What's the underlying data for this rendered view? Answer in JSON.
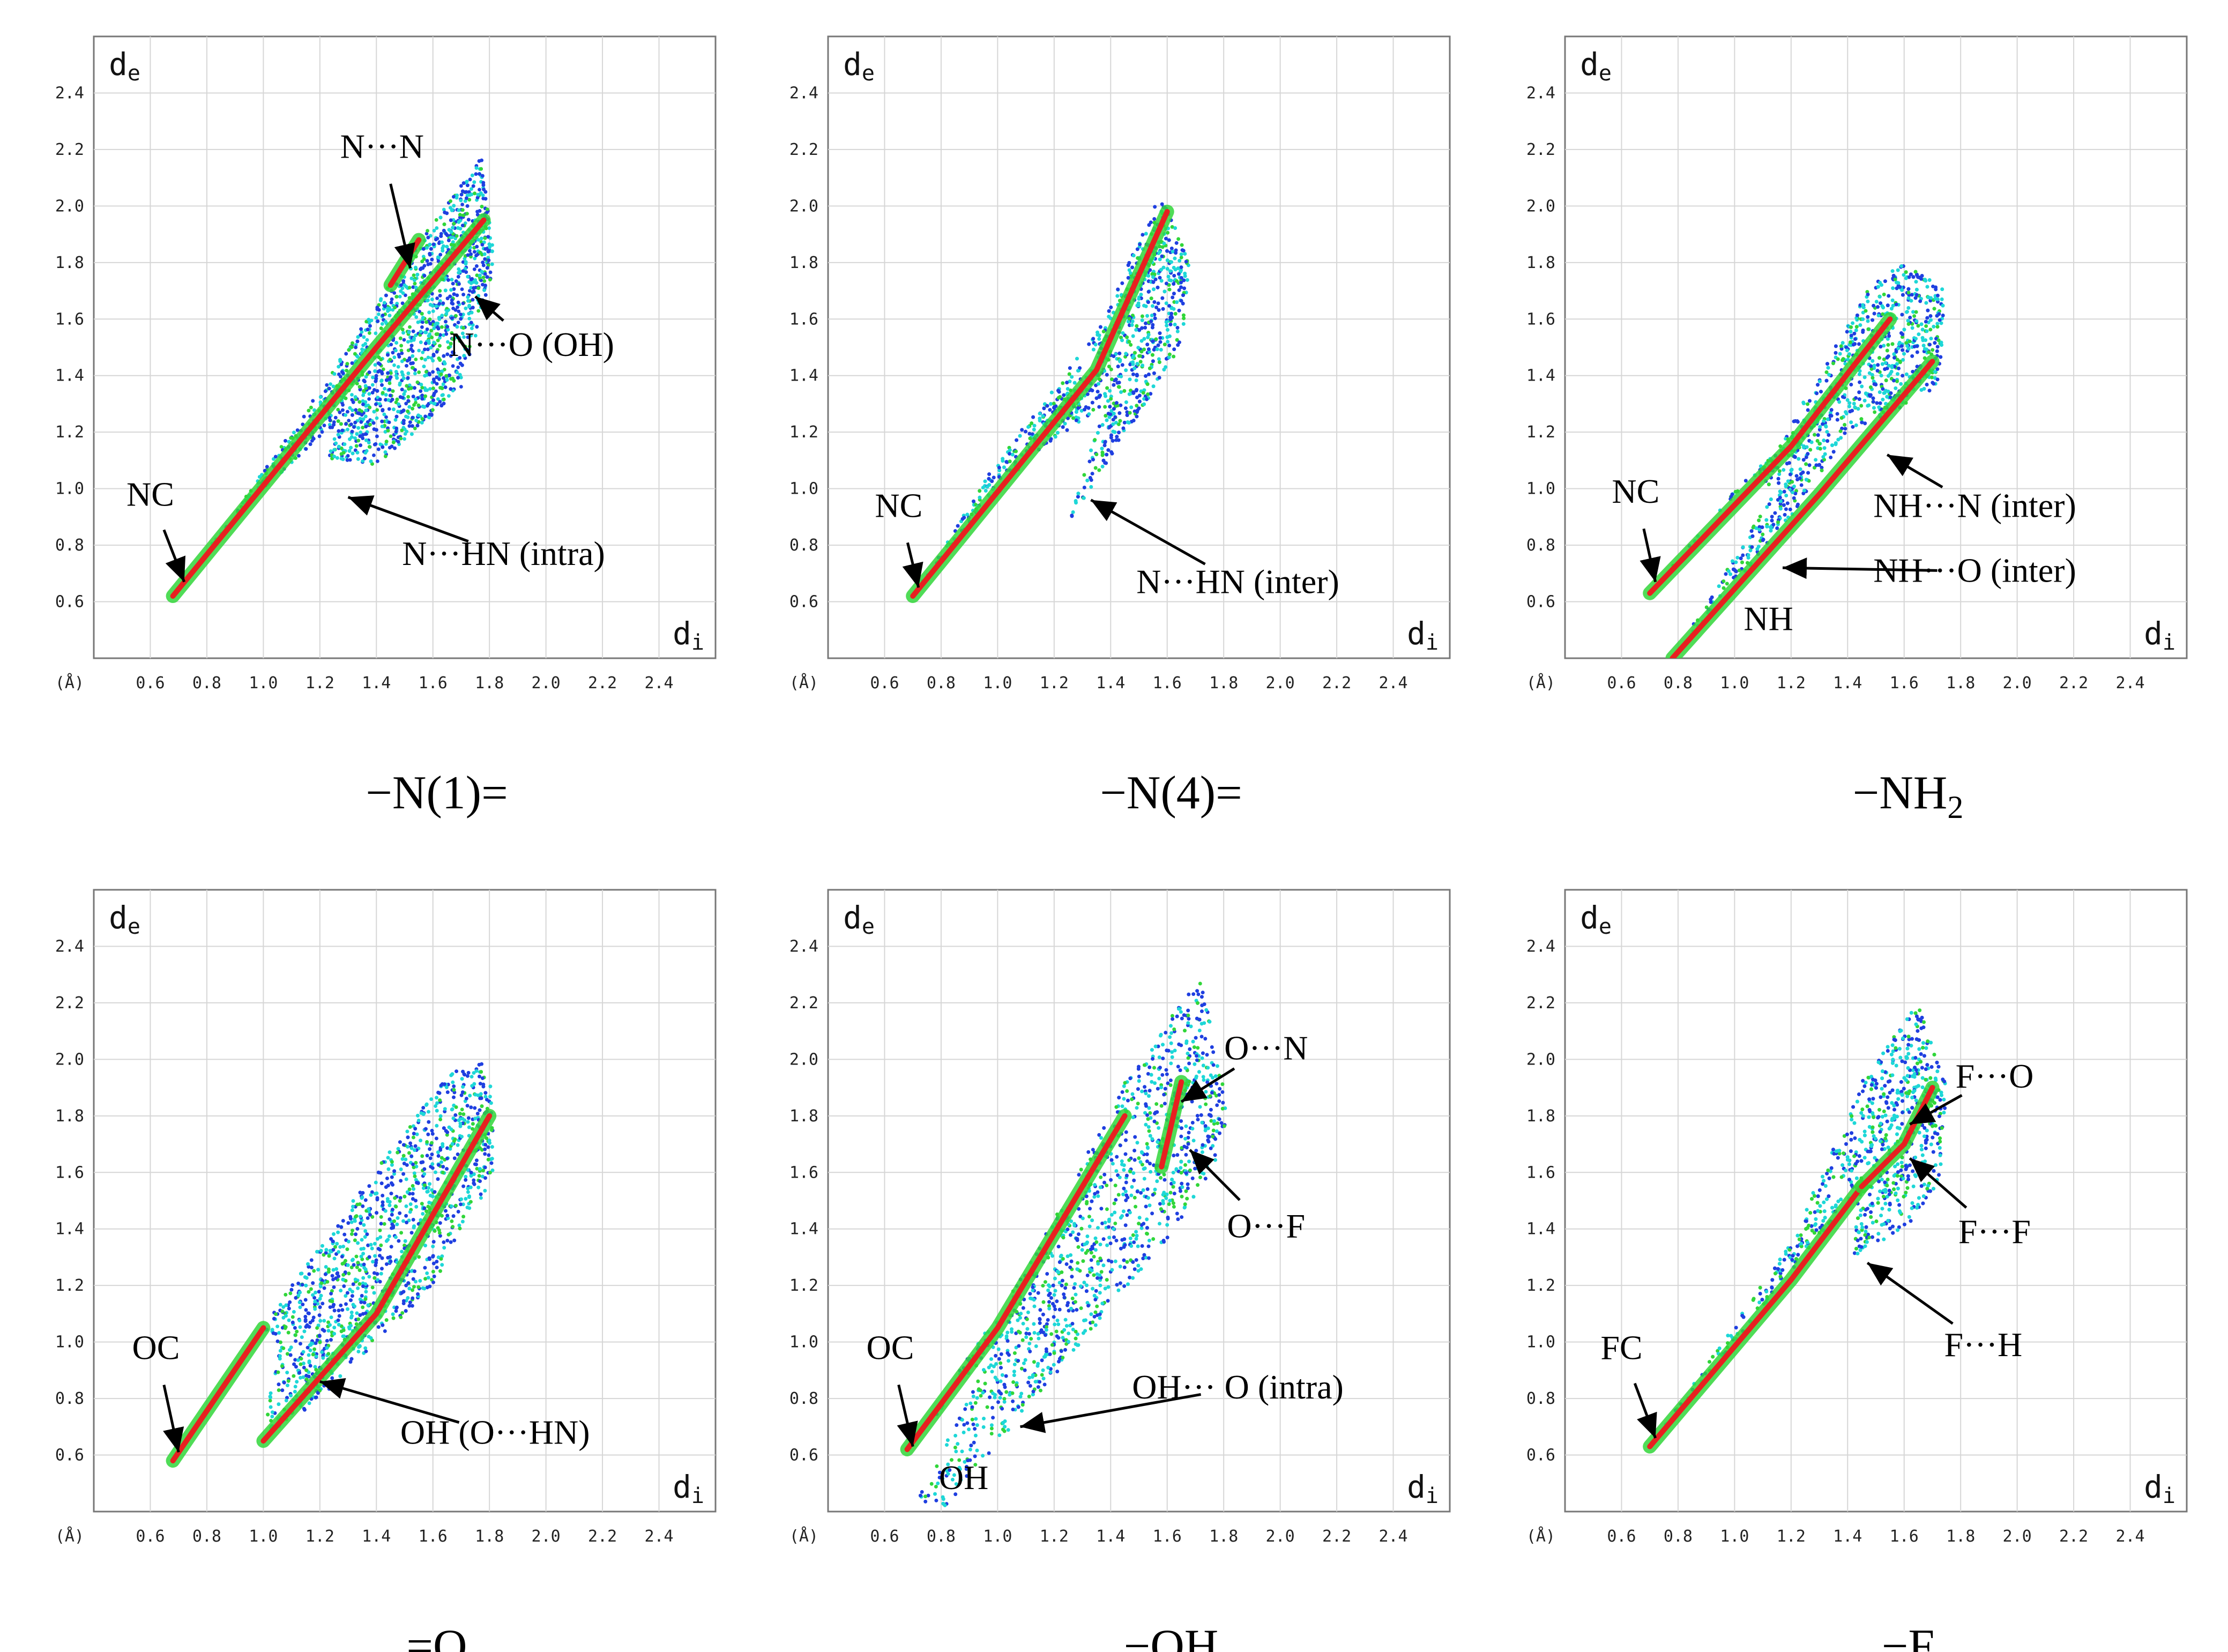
{
  "figure": {
    "axis_labels": {
      "de": "d",
      "de_sub": "e",
      "di": "d",
      "di_sub": "i",
      "unit": "(Å)"
    },
    "ticks": [
      "0.6",
      "0.8",
      "1.0",
      "1.2",
      "1.4",
      "1.6",
      "1.8",
      "2.0",
      "2.2",
      "2.4"
    ]
  },
  "palette": {
    "blue": "#1f3fe0",
    "cyan": "#1ed7d7",
    "green": "#31d63a",
    "red": "#e82020",
    "grid": "#d6d6d6",
    "frame": "#777777"
  },
  "chart_data": [
    {
      "type": "scatter",
      "id": "n1",
      "title": "−N(1)=",
      "xlabel": "di",
      "ylabel": "de",
      "xlim": [
        0.4,
        2.6
      ],
      "ylim": [
        0.4,
        2.6
      ],
      "grid": true,
      "regions": [
        {
          "kind": "band",
          "color": "red",
          "pts": [
            [
              0.68,
              0.62
            ],
            [
              1.4,
              1.5
            ],
            [
              1.78,
              1.95
            ]
          ]
        },
        {
          "kind": "cloud",
          "color": "mix",
          "poly": [
            [
              0.68,
              0.62
            ],
            [
              1.1,
              1.2
            ],
            [
              1.5,
              1.8
            ],
            [
              1.77,
              2.18
            ],
            [
              1.82,
              1.8
            ],
            [
              1.7,
              1.35
            ],
            [
              1.4,
              1.08
            ],
            [
              1.22,
              1.1
            ],
            [
              1.28,
              1.25
            ],
            [
              0.9,
              0.9
            ]
          ]
        },
        {
          "kind": "band",
          "color": "red",
          "pts": [
            [
              1.45,
              1.72
            ],
            [
              1.55,
              1.88
            ]
          ]
        }
      ],
      "annotations": [
        {
          "text": "N···N",
          "label_xy": [
            1.42,
            2.17
          ],
          "tip_xy": [
            1.52,
            1.78
          ]
        },
        {
          "text": "N···O (OH)",
          "label_xy": [
            1.95,
            1.47
          ],
          "tip_xy": [
            1.75,
            1.68
          ]
        },
        {
          "text": "N···HN (intra)",
          "label_xy": [
            1.85,
            0.73
          ],
          "tip_xy": [
            1.3,
            0.97
          ]
        },
        {
          "text": "NC",
          "label_xy": [
            0.6,
            0.94
          ],
          "tip_xy": [
            0.72,
            0.67
          ]
        }
      ]
    },
    {
      "type": "scatter",
      "id": "n4",
      "title": "−N(4)=",
      "xlabel": "di",
      "ylabel": "de",
      "xlim": [
        0.4,
        2.6
      ],
      "ylim": [
        0.4,
        2.6
      ],
      "grid": true,
      "regions": [
        {
          "kind": "band",
          "color": "red",
          "pts": [
            [
              0.7,
              0.62
            ],
            [
              1.35,
              1.42
            ],
            [
              1.6,
              1.98
            ]
          ]
        },
        {
          "kind": "cloud",
          "color": "mix",
          "poly": [
            [
              0.7,
              0.62
            ],
            [
              1.0,
              1.1
            ],
            [
              1.35,
              1.55
            ],
            [
              1.58,
              2.05
            ],
            [
              1.68,
              1.8
            ],
            [
              1.65,
              1.5
            ],
            [
              1.25,
              0.88
            ],
            [
              1.38,
              1.3
            ],
            [
              1.1,
              1.1
            ]
          ]
        }
      ],
      "annotations": [
        {
          "text": "NC",
          "label_xy": [
            0.65,
            0.9
          ],
          "tip_xy": [
            0.72,
            0.65
          ]
        },
        {
          "text": "N···HN (inter)",
          "label_xy": [
            1.85,
            0.63
          ],
          "tip_xy": [
            1.33,
            0.96
          ]
        }
      ]
    },
    {
      "type": "scatter",
      "id": "nh2",
      "title": "−NH",
      "title_sub": "2",
      "xlabel": "di",
      "ylabel": "de",
      "xlim": [
        0.4,
        2.6
      ],
      "ylim": [
        0.4,
        2.6
      ],
      "grid": true,
      "regions": [
        {
          "kind": "band",
          "color": "red",
          "pts": [
            [
              0.7,
              0.63
            ],
            [
              1.2,
              1.15
            ],
            [
              1.55,
              1.6
            ]
          ]
        },
        {
          "kind": "band",
          "color": "red",
          "pts": [
            [
              0.78,
              0.4
            ],
            [
              1.3,
              0.98
            ],
            [
              1.7,
              1.45
            ]
          ]
        },
        {
          "kind": "cloud",
          "color": "mix",
          "poly": [
            [
              0.7,
              0.63
            ],
            [
              1.15,
              1.15
            ],
            [
              1.5,
              1.75
            ],
            [
              1.6,
              1.8
            ],
            [
              1.75,
              1.7
            ],
            [
              1.72,
              1.35
            ],
            [
              1.4,
              1.2
            ],
            [
              1.2,
              0.9
            ],
            [
              0.78,
              0.4
            ],
            [
              1.15,
              1.0
            ],
            [
              1.05,
              1.05
            ]
          ]
        }
      ],
      "annotations": [
        {
          "text": "NC",
          "label_xy": [
            0.65,
            0.95
          ],
          "tip_xy": [
            0.72,
            0.67
          ]
        },
        {
          "text": "NH···N (inter)",
          "label_xy": [
            1.85,
            0.9
          ],
          "tip_xy": [
            1.54,
            1.12
          ]
        },
        {
          "text": "NH···O (inter)",
          "label_xy": [
            1.85,
            0.67
          ],
          "tip_xy": [
            1.17,
            0.72
          ]
        },
        {
          "text": "NH",
          "label_xy": [
            1.12,
            0.5
          ],
          "tip_xy": null
        }
      ]
    },
    {
      "type": "scatter",
      "id": "o",
      "title": "=O",
      "xlabel": "di",
      "ylabel": "de",
      "xlim": [
        0.4,
        2.6
      ],
      "ylim": [
        0.4,
        2.6
      ],
      "grid": true,
      "regions": [
        {
          "kind": "band",
          "color": "red",
          "pts": [
            [
              0.68,
              0.58
            ],
            [
              1.0,
              1.05
            ]
          ]
        },
        {
          "kind": "band",
          "color": "red",
          "pts": [
            [
              1.0,
              0.65
            ],
            [
              1.4,
              1.1
            ],
            [
              1.8,
              1.8
            ]
          ]
        },
        {
          "kind": "cloud",
          "color": "mix",
          "poly": [
            [
              0.68,
              0.58
            ],
            [
              1.1,
              1.2
            ],
            [
              1.5,
              1.75
            ],
            [
              1.65,
              1.95
            ],
            [
              1.8,
              2.0
            ],
            [
              1.82,
              1.6
            ],
            [
              1.6,
              1.2
            ],
            [
              1.2,
              0.8
            ],
            [
              1.0,
              0.65
            ],
            [
              1.05,
              1.0
            ],
            [
              1.0,
              1.05
            ]
          ]
        }
      ],
      "annotations": [
        {
          "text": "OC",
          "label_xy": [
            0.62,
            0.94
          ],
          "tip_xy": [
            0.7,
            0.61
          ]
        },
        {
          "text": "OH (O···HN)",
          "label_xy": [
            1.82,
            0.64
          ],
          "tip_xy": [
            1.2,
            0.86
          ]
        }
      ]
    },
    {
      "type": "scatter",
      "id": "oh",
      "title": "−OH",
      "xlabel": "di",
      "ylabel": "de",
      "xlim": [
        0.4,
        2.6
      ],
      "ylim": [
        0.4,
        2.6
      ],
      "grid": true,
      "regions": [
        {
          "kind": "band",
          "color": "red",
          "pts": [
            [
              0.68,
              0.62
            ],
            [
              1.0,
              1.05
            ],
            [
              1.45,
              1.8
            ]
          ]
        },
        {
          "kind": "band",
          "color": "red",
          "pts": [
            [
              1.58,
              1.62
            ],
            [
              1.65,
              1.92
            ]
          ]
        },
        {
          "kind": "cloud",
          "color": "mix",
          "poly": [
            [
              0.68,
              0.62
            ],
            [
              1.1,
              1.25
            ],
            [
              1.45,
              1.92
            ],
            [
              1.72,
              2.3
            ],
            [
              1.82,
              1.8
            ],
            [
              1.75,
              1.55
            ],
            [
              1.3,
              1.0
            ],
            [
              0.8,
              0.4
            ],
            [
              0.72,
              0.45
            ],
            [
              1.0,
              1.0
            ]
          ]
        }
      ],
      "annotations": [
        {
          "text": "O···N",
          "label_xy": [
            1.95,
            2.0
          ],
          "tip_xy": [
            1.65,
            1.85
          ]
        },
        {
          "text": "O···F",
          "label_xy": [
            1.95,
            1.37
          ],
          "tip_xy": [
            1.68,
            1.68
          ]
        },
        {
          "text": "OC",
          "label_xy": [
            0.62,
            0.94
          ],
          "tip_xy": [
            0.7,
            0.63
          ]
        },
        {
          "text": "OH··· O (intra)",
          "label_xy": [
            1.85,
            0.8
          ],
          "tip_xy": [
            1.08,
            0.7
          ]
        },
        {
          "text": "OH",
          "label_xy": [
            0.88,
            0.48
          ],
          "tip_xy": null
        }
      ]
    },
    {
      "type": "scatter",
      "id": "f",
      "title": "−F",
      "xlabel": "di",
      "ylabel": "de",
      "xlim": [
        0.4,
        2.6
      ],
      "ylim": [
        0.4,
        2.6
      ],
      "grid": true,
      "regions": [
        {
          "kind": "band",
          "color": "red",
          "pts": [
            [
              0.7,
              0.63
            ],
            [
              1.2,
              1.22
            ],
            [
              1.45,
              1.55
            ]
          ]
        },
        {
          "kind": "cloud",
          "color": "mix",
          "poly": [
            [
              0.7,
              0.63
            ],
            [
              1.2,
              1.35
            ],
            [
              1.45,
              1.92
            ],
            [
              1.65,
              2.2
            ],
            [
              1.75,
              1.9
            ],
            [
              1.72,
              1.5
            ],
            [
              1.52,
              1.35
            ],
            [
              1.42,
              1.3
            ],
            [
              1.44,
              1.55
            ],
            [
              1.2,
              1.25
            ]
          ]
        },
        {
          "kind": "band",
          "color": "red",
          "pts": [
            [
              1.45,
              1.55
            ],
            [
              1.6,
              1.7
            ],
            [
              1.7,
              1.9
            ]
          ]
        }
      ],
      "annotations": [
        {
          "text": "F···O",
          "label_xy": [
            1.92,
            1.9
          ],
          "tip_xy": [
            1.62,
            1.77
          ]
        },
        {
          "text": "F···F",
          "label_xy": [
            1.92,
            1.35
          ],
          "tip_xy": [
            1.62,
            1.65
          ]
        },
        {
          "text": "F···H",
          "label_xy": [
            1.88,
            0.95
          ],
          "tip_xy": [
            1.47,
            1.28
          ]
        },
        {
          "text": "FC",
          "label_xy": [
            0.6,
            0.94
          ],
          "tip_xy": [
            0.72,
            0.66
          ]
        }
      ]
    }
  ]
}
